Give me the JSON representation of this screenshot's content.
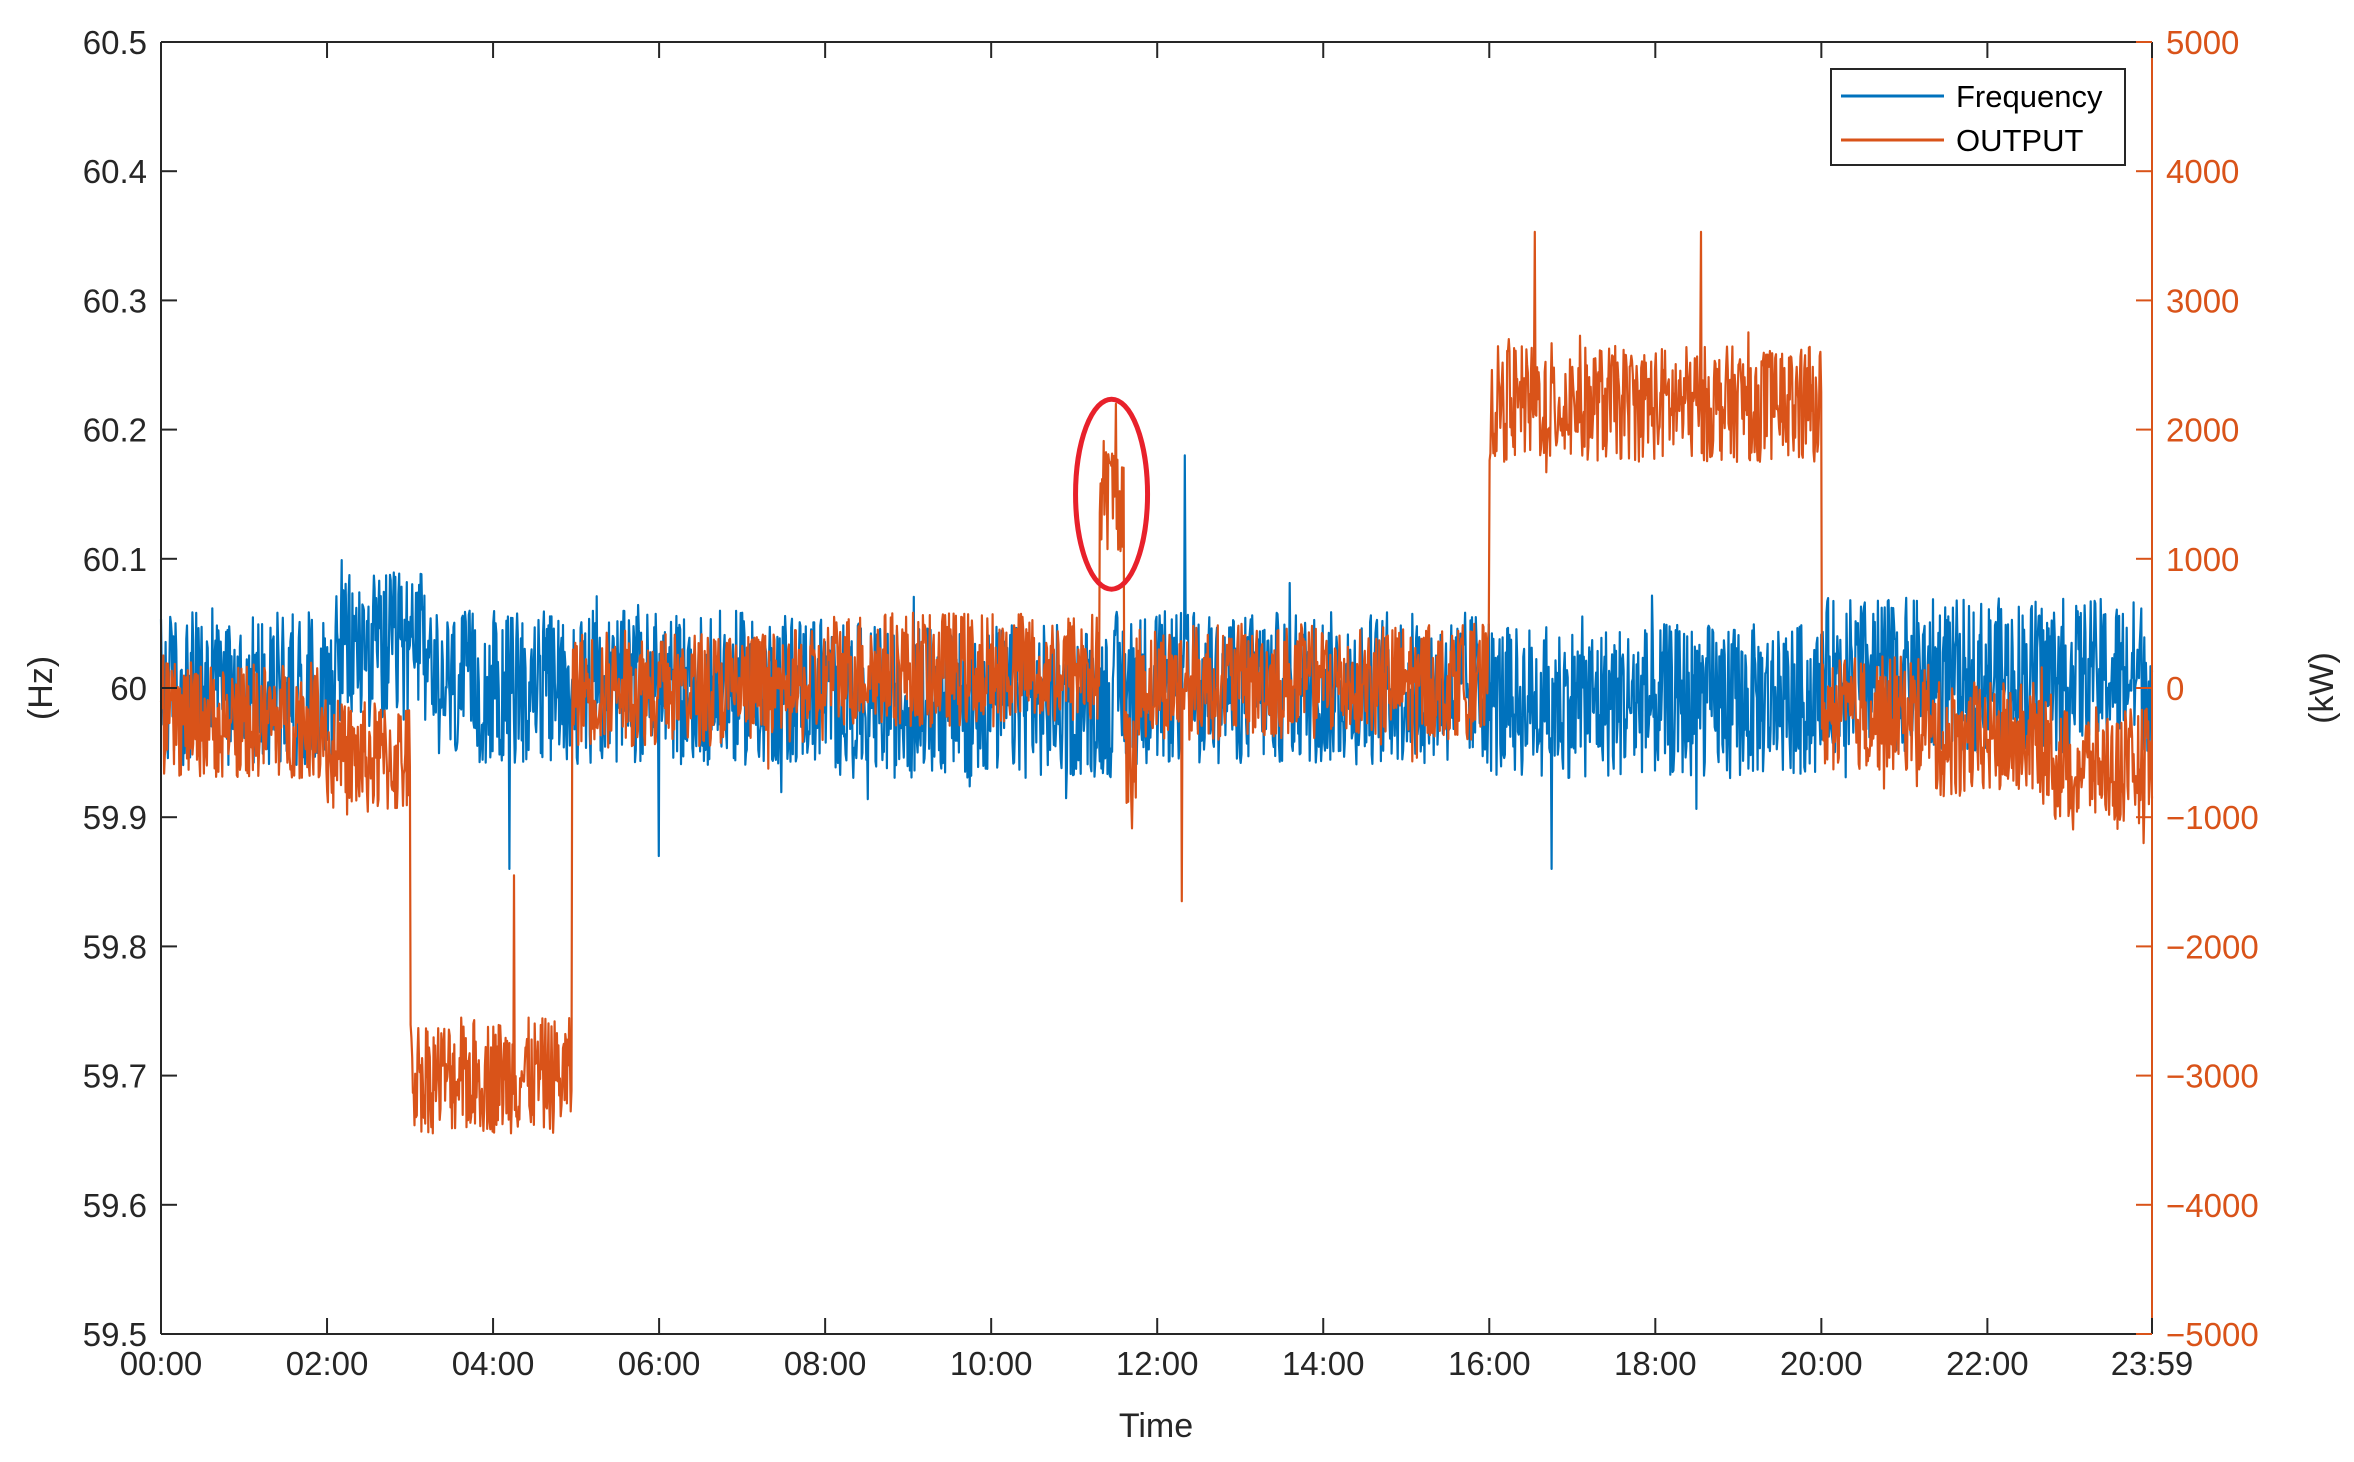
{
  "chart_data": {
    "type": "line",
    "xlabel": "Time",
    "ylabel_left": "(Hz)",
    "ylabel_right": "(kW)",
    "x_ticks": [
      "00:00",
      "02:00",
      "04:00",
      "06:00",
      "08:00",
      "10:00",
      "12:00",
      "14:00",
      "16:00",
      "18:00",
      "20:00",
      "22:00",
      "23:59"
    ],
    "x_range_hours": [
      0,
      23.983
    ],
    "ylim_left": [
      59.5,
      60.5
    ],
    "ylim_right": [
      -5000,
      5000
    ],
    "y_ticks_left": [
      "59.5",
      "59.6",
      "59.7",
      "59.8",
      "59.9",
      "60",
      "60.1",
      "60.2",
      "60.3",
      "60.4",
      "60.5"
    ],
    "y_ticks_right": [
      "−5000",
      "−4000",
      "−3000",
      "−2000",
      "−1000",
      "0",
      "1000",
      "2000",
      "3000",
      "4000",
      "5000"
    ],
    "grid": false,
    "legend_position": "top-right",
    "colors": {
      "frequency": "#0072BD",
      "output": "#D95319",
      "highlight": "#E8212B",
      "axis_left": "#262626"
    },
    "series": [
      {
        "name": "Frequency",
        "axis": "left",
        "color": "#0072BD",
        "noise_amplitude_hz": 0.06,
        "segments": [
          {
            "start": 0.0,
            "end": 0.55,
            "mean": 60.0
          },
          {
            "start": 0.55,
            "end": 2.1,
            "mean": 60.0
          },
          {
            "start": 2.1,
            "end": 3.3,
            "mean": 60.03
          },
          {
            "start": 3.3,
            "end": 5.0,
            "mean": 60.0
          },
          {
            "start": 5.0,
            "end": 8.0,
            "mean": 60.0
          },
          {
            "start": 8.0,
            "end": 11.5,
            "mean": 59.99
          },
          {
            "start": 11.5,
            "end": 16.0,
            "mean": 60.0
          },
          {
            "start": 16.0,
            "end": 20.0,
            "mean": 59.99
          },
          {
            "start": 20.0,
            "end": 23.983,
            "mean": 60.01
          }
        ],
        "spikes": [
          {
            "x": 12.33,
            "y": 60.18
          },
          {
            "x": 4.2,
            "y": 59.86
          },
          {
            "x": 6.0,
            "y": 59.87
          },
          {
            "x": 16.75,
            "y": 59.86
          }
        ]
      },
      {
        "name": "OUTPUT",
        "axis": "right",
        "color": "#D95319",
        "noise_amplitude_kw": 450,
        "segments": [
          {
            "start": 0.0,
            "end": 2.0,
            "mean": -250
          },
          {
            "start": 2.0,
            "end": 3.0,
            "mean": -550
          },
          {
            "start": 3.0,
            "end": 4.95,
            "mean": -3000
          },
          {
            "start": 4.95,
            "end": 8.0,
            "mean": 0
          },
          {
            "start": 8.0,
            "end": 11.3,
            "mean": 150
          },
          {
            "start": 11.3,
            "end": 11.6,
            "mean": 1500
          },
          {
            "start": 11.6,
            "end": 11.75,
            "mean": -600
          },
          {
            "start": 11.75,
            "end": 16.0,
            "mean": 50
          },
          {
            "start": 16.0,
            "end": 20.0,
            "mean": 2200
          },
          {
            "start": 20.0,
            "end": 21.3,
            "mean": -200
          },
          {
            "start": 21.3,
            "end": 22.8,
            "mean": -400
          },
          {
            "start": 22.8,
            "end": 23.983,
            "mean": -600
          }
        ],
        "spikes": [
          {
            "x": 11.5,
            "y": 2200
          },
          {
            "x": 12.3,
            "y": -1650
          },
          {
            "x": 4.25,
            "y": -1450
          },
          {
            "x": 16.55,
            "y": 3530
          },
          {
            "x": 18.55,
            "y": 3530
          }
        ]
      }
    ],
    "annotations": [
      {
        "type": "ellipse",
        "x": 11.45,
        "y_right": 1500,
        "color": "#E8212B"
      }
    ]
  }
}
